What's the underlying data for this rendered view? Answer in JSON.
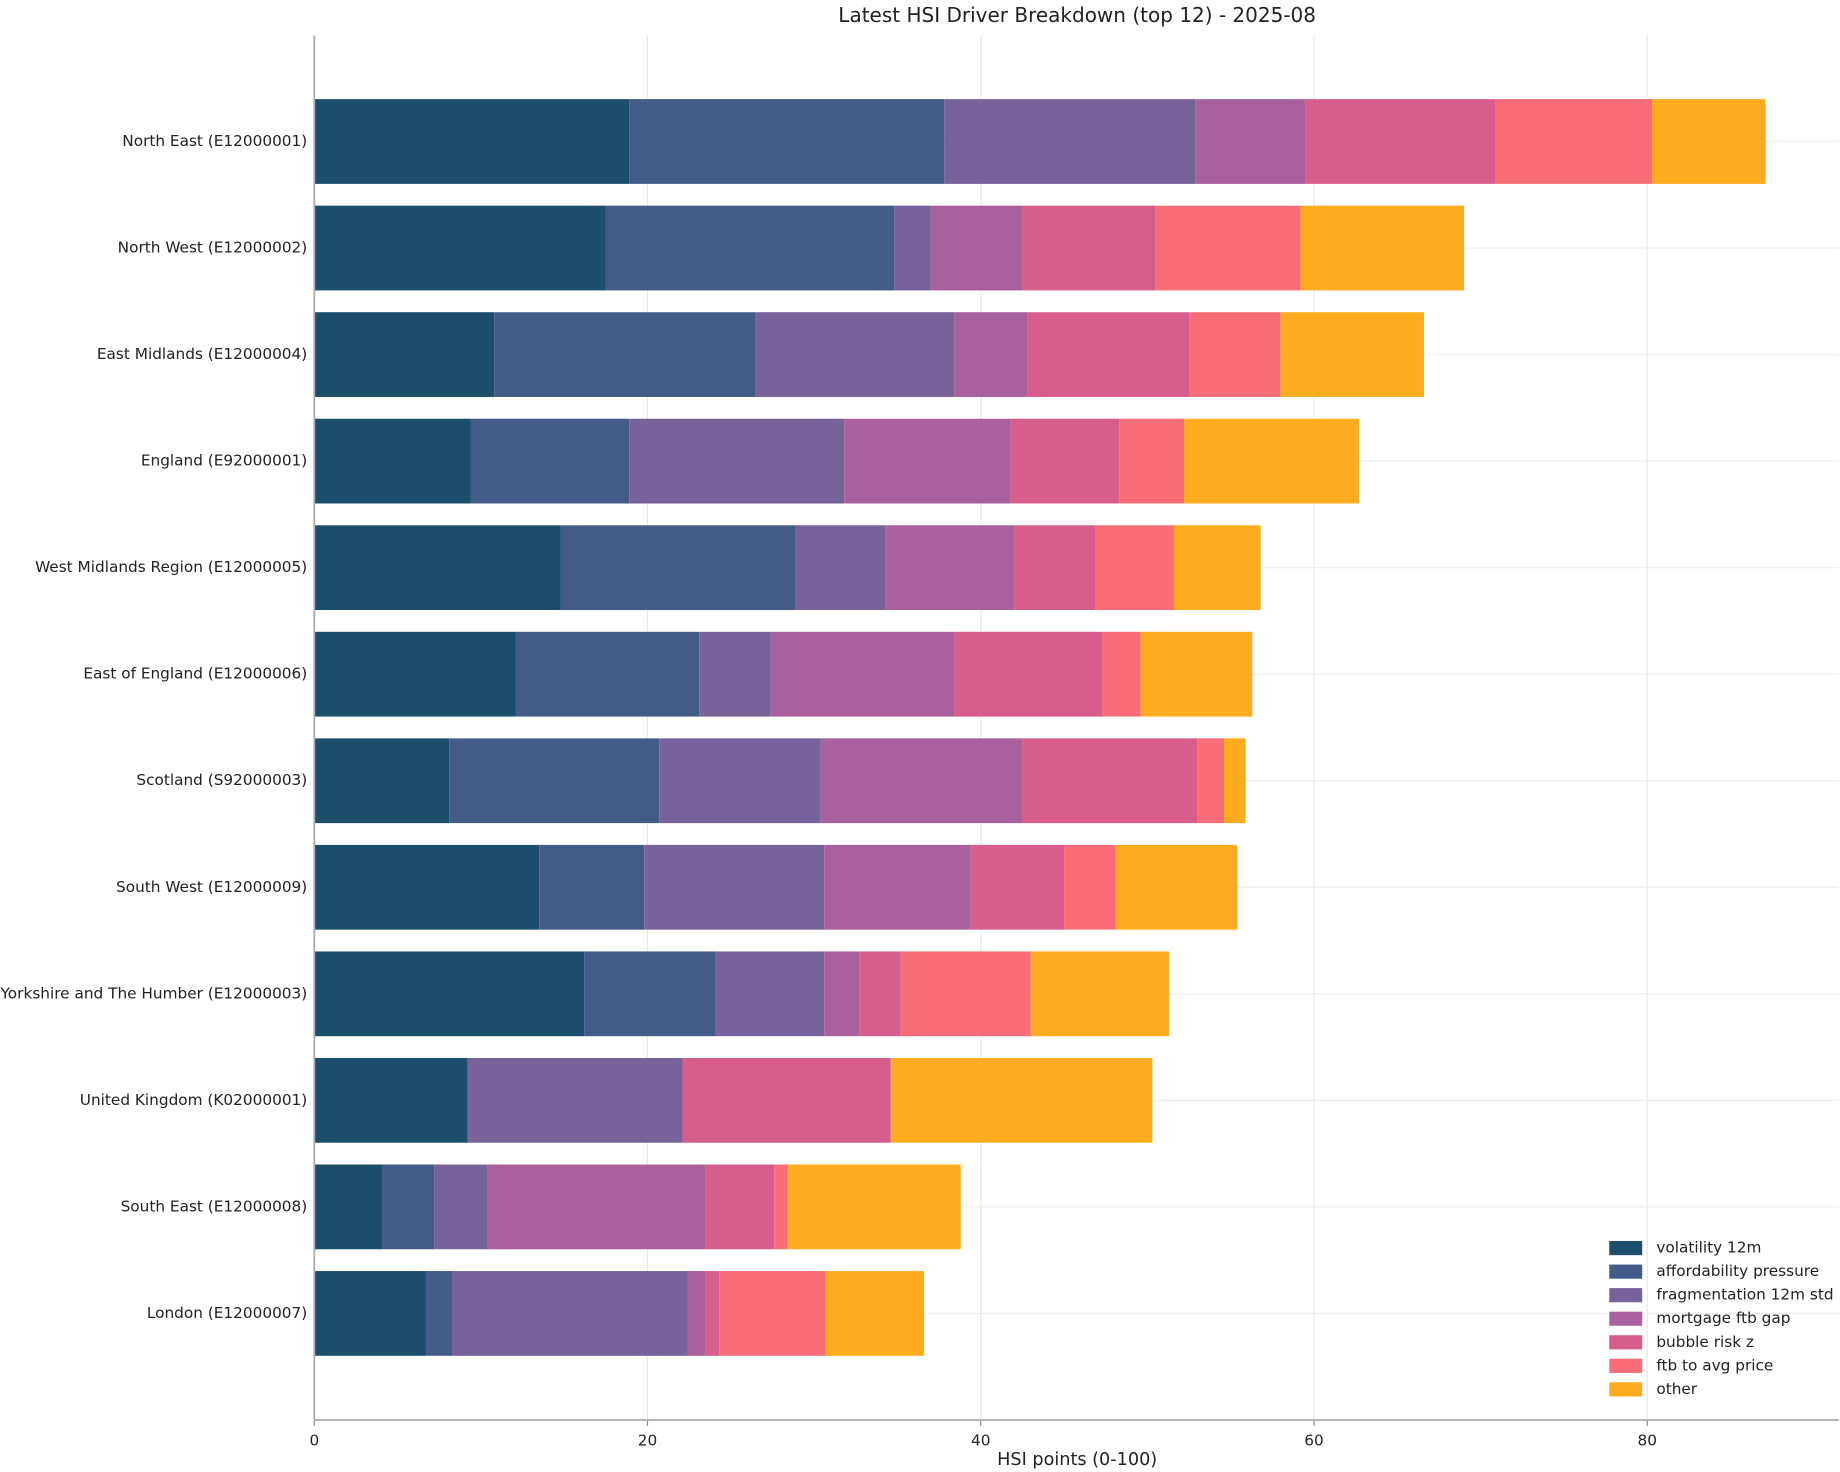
{
  "chart_data": {
    "type": "stacked_barh",
    "title": "Latest HSI Driver Breakdown (top 12) - 2025-08",
    "x_label": "HSI points (0-100)",
    "categories": [
      "North East (E12000001)",
      "North West (E12000002)",
      "East Midlands (E12000004)",
      "England (E92000001)",
      "West Midlands Region (E12000005)",
      "East of England (E12000006)",
      "Scotland (S92000003)",
      "South West (E12000009)",
      "Yorkshire and The Humber (E12000003)",
      "United Kingdom (K02000001)",
      "South East (E12000008)",
      "London (E12000007)"
    ],
    "series": [
      {
        "name": "volatility 12m",
        "color": "#1b4f6b",
        "values": [
          18.9,
          17.5,
          10.8,
          9.4,
          14.8,
          12.1,
          8.1,
          13.5,
          16.2,
          9.2,
          4.1,
          6.7
        ]
      },
      {
        "name": "affordability pressure",
        "color": "#445b87",
        "values": [
          18.9,
          17.3,
          15.7,
          9.5,
          14.1,
          11.0,
          12.6,
          6.3,
          7.9,
          0,
          3.1,
          1.6
        ]
      },
      {
        "name": "fragmentation 12m std",
        "color": "#77629a",
        "values": [
          15.1,
          2.2,
          11.9,
          12.9,
          5.4,
          4.3,
          9.7,
          10.8,
          6.5,
          12.9,
          3.2,
          14.1
        ]
      },
      {
        "name": "mortgage ftb gap",
        "color": "#a9619d",
        "values": [
          6.6,
          5.5,
          4.4,
          10.0,
          7.7,
          11.0,
          12.1,
          8.8,
          2.1,
          0,
          13.1,
          1.1
        ]
      },
      {
        "name": "bubble risk z",
        "color": "#d75e8c",
        "values": [
          11.4,
          8.0,
          9.7,
          6.5,
          4.9,
          8.9,
          10.5,
          5.6,
          2.5,
          12.5,
          4.1,
          0.8
        ]
      },
      {
        "name": "ftb to avg price",
        "color": "#f86d78",
        "values": [
          9.4,
          8.7,
          5.5,
          3.9,
          4.7,
          2.3,
          1.6,
          3.1,
          7.8,
          0,
          0.8,
          6.4
        ]
      },
      {
        "name": "other",
        "color": "#fdab1f",
        "values": [
          6.8,
          9.8,
          8.6,
          10.5,
          5.2,
          6.7,
          1.3,
          7.3,
          8.3,
          15.7,
          10.4,
          5.9
        ]
      }
    ],
    "xlim": [
      0,
      91.5
    ],
    "xticks": [
      0,
      20,
      40,
      60,
      80
    ],
    "grid": true,
    "legend": "lower right"
  }
}
